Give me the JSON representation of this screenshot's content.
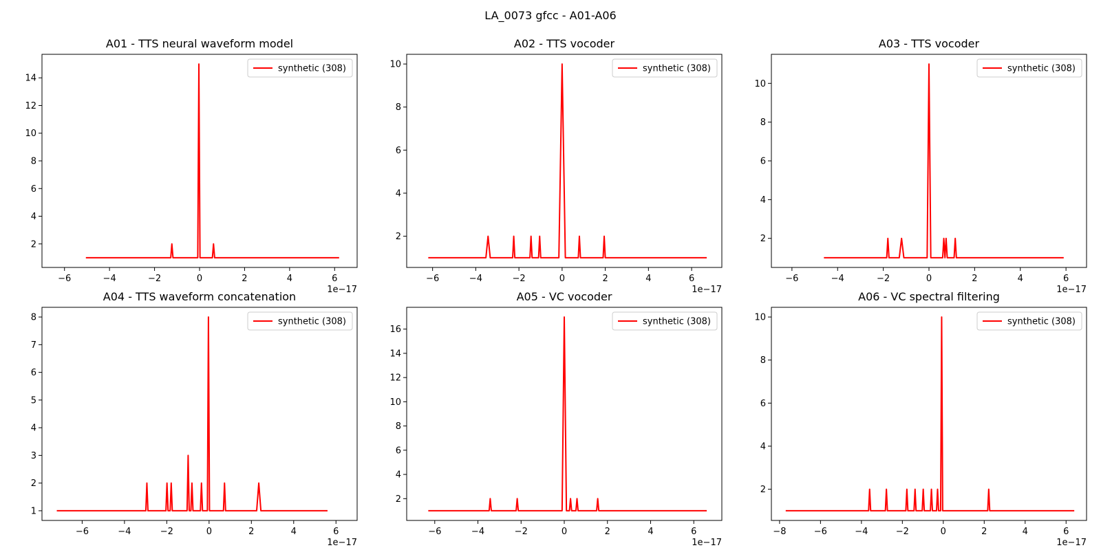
{
  "figure": {
    "suptitle": "LA_0073 gfcc - A01-A06"
  },
  "chart_data": [
    {
      "type": "line",
      "title": "A01 - TTS neural waveform model",
      "xlabel": "",
      "ylabel": "",
      "x_offset_label": "1e−17",
      "xlim": [
        -7.0,
        7.0
      ],
      "ylim": [
        0.3,
        15.7
      ],
      "xticks": [
        -6,
        -4,
        -2,
        0,
        2,
        4,
        6
      ],
      "yticks": [
        2,
        4,
        6,
        8,
        10,
        12,
        14
      ],
      "legend": "top-right",
      "grid": false,
      "color": "#ff0000",
      "series": [
        {
          "name": "synthetic (308)",
          "x": [
            -5.05,
            -1.28,
            -1.23,
            -1.18,
            -0.08,
            -0.03,
            0.02,
            0.57,
            0.62,
            0.67,
            6.2
          ],
          "y": [
            1,
            1,
            2,
            1,
            1,
            15,
            1,
            1,
            2,
            1,
            1
          ]
        }
      ]
    },
    {
      "type": "line",
      "title": "A02 - TTS vocoder",
      "xlabel": "",
      "ylabel": "",
      "x_offset_label": "1e−17",
      "xlim": [
        -7.2,
        7.4
      ],
      "ylim": [
        0.55,
        10.45
      ],
      "xticks": [
        -6,
        -4,
        -2,
        0,
        2,
        4,
        6
      ],
      "yticks": [
        2,
        4,
        6,
        8,
        10
      ],
      "legend": "top-right",
      "grid": false,
      "color": "#ff0000",
      "series": [
        {
          "name": "synthetic (308)",
          "x": [
            -6.2,
            -3.53,
            -3.43,
            -3.33,
            -2.29,
            -2.24,
            -2.19,
            -1.49,
            -1.44,
            -1.39,
            -1.09,
            -1.04,
            -0.99,
            -0.15,
            0.0,
            0.15,
            0.75,
            0.8,
            0.85,
            1.9,
            1.95,
            2.0,
            6.7
          ],
          "y": [
            1,
            1,
            2,
            1,
            1,
            2,
            1,
            1,
            2,
            1,
            1,
            2,
            1,
            1,
            10,
            1,
            1,
            2,
            1,
            1,
            2,
            1,
            1
          ]
        }
      ]
    },
    {
      "type": "line",
      "title": "A03 - TTS vocoder",
      "xlabel": "",
      "ylabel": "",
      "x_offset_label": "1e−17",
      "xlim": [
        -6.9,
        6.9
      ],
      "ylim": [
        0.5,
        11.5
      ],
      "xticks": [
        -6,
        -4,
        -2,
        0,
        2,
        4,
        6
      ],
      "yticks": [
        2,
        4,
        6,
        8,
        10
      ],
      "legend": "top-right",
      "grid": false,
      "color": "#ff0000",
      "series": [
        {
          "name": "synthetic (308)",
          "x": [
            -4.6,
            -1.85,
            -1.8,
            -1.75,
            -1.3,
            -1.2,
            -1.1,
            -0.08,
            0.0,
            0.08,
            0.6,
            0.65,
            0.7,
            0.75,
            0.8,
            1.1,
            1.15,
            1.2,
            5.9
          ],
          "y": [
            1,
            1,
            2,
            1,
            1,
            2,
            1,
            1,
            11,
            1,
            1,
            2,
            1,
            2,
            1,
            1,
            2,
            1,
            1
          ]
        }
      ]
    },
    {
      "type": "line",
      "title": "A04 - TTS waveform concatenation",
      "xlabel": "",
      "ylabel": "",
      "x_offset_label": "1e−17",
      "xlim": [
        -7.9,
        7.0
      ],
      "ylim": [
        0.65,
        8.35
      ],
      "xticks": [
        -6,
        -4,
        -2,
        0,
        2,
        4,
        6
      ],
      "yticks": [
        1,
        2,
        3,
        4,
        5,
        6,
        7,
        8
      ],
      "legend": "top-right",
      "grid": false,
      "color": "#ff0000",
      "series": [
        {
          "name": "synthetic (308)",
          "x": [
            -7.2,
            -2.99,
            -2.94,
            -2.89,
            -2.04,
            -1.99,
            -1.94,
            -1.84,
            -1.79,
            -1.74,
            -1.04,
            -0.99,
            -0.94,
            -0.86,
            -0.81,
            -0.76,
            -0.41,
            -0.36,
            -0.31,
            -0.08,
            -0.03,
            0.02,
            0.68,
            0.73,
            0.78,
            2.25,
            2.35,
            2.45,
            5.6
          ],
          "y": [
            1,
            1,
            2,
            1,
            1,
            2,
            1,
            1,
            2,
            1,
            1,
            3,
            1,
            1,
            2,
            1,
            1,
            2,
            1,
            1,
            8,
            1,
            1,
            2,
            1,
            1,
            2,
            1,
            1
          ]
        }
      ]
    },
    {
      "type": "line",
      "title": "A05 - VC vocoder",
      "xlabel": "",
      "ylabel": "",
      "x_offset_label": "1e−17",
      "xlim": [
        -7.3,
        7.3
      ],
      "ylim": [
        0.2,
        17.8
      ],
      "xticks": [
        -6,
        -4,
        -2,
        0,
        2,
        4,
        6
      ],
      "yticks": [
        2,
        4,
        6,
        8,
        10,
        12,
        14,
        16
      ],
      "legend": "top-right",
      "grid": false,
      "color": "#ff0000",
      "series": [
        {
          "name": "synthetic (308)",
          "x": [
            -6.3,
            -3.48,
            -3.43,
            -3.38,
            -2.23,
            -2.18,
            -2.13,
            -0.1,
            0.0,
            0.1,
            0.24,
            0.29,
            0.34,
            0.54,
            0.59,
            0.64,
            1.5,
            1.55,
            1.6,
            6.6
          ],
          "y": [
            1,
            1,
            2,
            1,
            1,
            2,
            1,
            1,
            17,
            1,
            1,
            2,
            1,
            1,
            2,
            1,
            1,
            2,
            1,
            1
          ]
        }
      ]
    },
    {
      "type": "line",
      "title": "A06 - VC spectral filtering",
      "xlabel": "",
      "ylabel": "",
      "x_offset_label": "1e−17",
      "xlim": [
        -8.4,
        7.0
      ],
      "ylim": [
        0.55,
        10.45
      ],
      "xticks": [
        -8,
        -6,
        -4,
        -2,
        0,
        2,
        4,
        6
      ],
      "yticks": [
        2,
        4,
        6,
        8,
        10
      ],
      "legend": "top-right",
      "grid": false,
      "color": "#ff0000",
      "series": [
        {
          "name": "synthetic (308)",
          "x": [
            -7.7,
            -3.65,
            -3.6,
            -3.55,
            -2.83,
            -2.78,
            -2.73,
            -1.83,
            -1.78,
            -1.73,
            -1.43,
            -1.38,
            -1.33,
            -1.03,
            -0.98,
            -0.93,
            -0.63,
            -0.58,
            -0.53,
            -0.33,
            -0.28,
            -0.23,
            -0.13,
            -0.08,
            -0.03,
            2.17,
            2.22,
            2.27,
            6.4
          ],
          "y": [
            1,
            1,
            2,
            1,
            1,
            2,
            1,
            1,
            2,
            1,
            1,
            2,
            1,
            1,
            2,
            1,
            1,
            2,
            1,
            1,
            2,
            1,
            1,
            10,
            1,
            1,
            2,
            1,
            1
          ]
        }
      ]
    }
  ]
}
